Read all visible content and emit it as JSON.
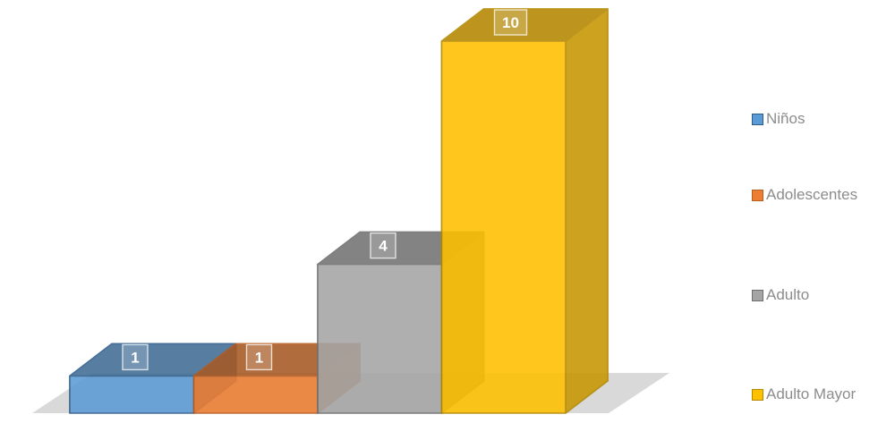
{
  "chart_data": {
    "type": "bar",
    "style": "3d-column",
    "title": "",
    "xlabel": "",
    "ylabel": "",
    "categories": [
      "Niños",
      "Adolescentes",
      "Adulto",
      "Adulto Mayor"
    ],
    "values": [
      1,
      1,
      4,
      10
    ],
    "data_labels": [
      "1",
      "1",
      "4",
      "10"
    ],
    "ylim": [
      0,
      10
    ],
    "grid": false,
    "axes_visible": false,
    "legend_position": "right",
    "legend": [
      {
        "name": "Niños",
        "color": "#5b9bd5",
        "edge": "#2e5c8a"
      },
      {
        "name": "Adolescentes",
        "color": "#ed7d31",
        "edge": "#b85c1f"
      },
      {
        "name": "Adulto",
        "color": "#a5a5a5",
        "edge": "#6e6e6e"
      },
      {
        "name": "Adulto Mayor",
        "color": "#ffc000",
        "edge": "#b38700"
      }
    ]
  }
}
